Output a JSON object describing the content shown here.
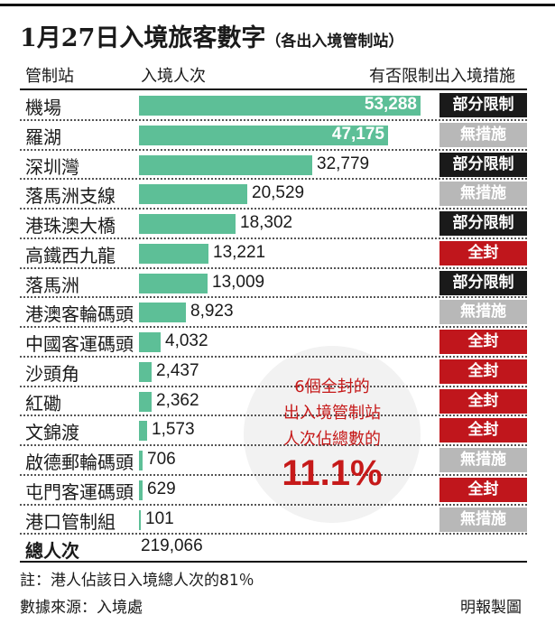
{
  "title": "1月27日入境旅客數字",
  "title_sub": "（各出入境管制站）",
  "headers": {
    "station": "管制站",
    "count": "入境人次",
    "measure": "有否限制出入境措施"
  },
  "colors": {
    "bar": "#5dbf97",
    "partial": "#1a1a1a",
    "none": "#b8b8b8",
    "closed": "#c0161c"
  },
  "chart_data": {
    "type": "bar",
    "orientation": "horizontal",
    "categories": [
      "機場",
      "羅湖",
      "深圳灣",
      "落馬洲支線",
      "港珠澳大橋",
      "高鐵西九龍",
      "落馬洲",
      "港澳客輪碼頭",
      "中國客運碼頭",
      "沙頭角",
      "紅磡",
      "文錦渡",
      "啟德郵輪碼頭",
      "屯門客運碼頭",
      "港口管制組"
    ],
    "values": [
      53288,
      47175,
      32779,
      20529,
      18302,
      13221,
      13009,
      8923,
      4032,
      2437,
      2362,
      1573,
      706,
      629,
      101
    ],
    "value_labels": [
      "53,288",
      "47,175",
      "32,779",
      "20,529",
      "18,302",
      "13,221",
      "13,009",
      "8,923",
      "4,032",
      "2,437",
      "2,362",
      "1,573",
      "706",
      "629",
      "101"
    ],
    "measures": [
      "部分限制",
      "無措施",
      "部分限制",
      "無措施",
      "部分限制",
      "全封",
      "部分限制",
      "無措施",
      "全封",
      "全封",
      "全封",
      "全封",
      "無措施",
      "全封",
      "無措施"
    ]
  },
  "total": {
    "label": "總人次",
    "value": "219,066"
  },
  "callout": {
    "line1": "6個全封的",
    "line2": "出入境管制站",
    "line3": "人次佔總數的",
    "value": "11.1%"
  },
  "note": "註：港人佔該日入境總人次的81％",
  "source": "數據來源：入境處",
  "credit": "明報製圖"
}
